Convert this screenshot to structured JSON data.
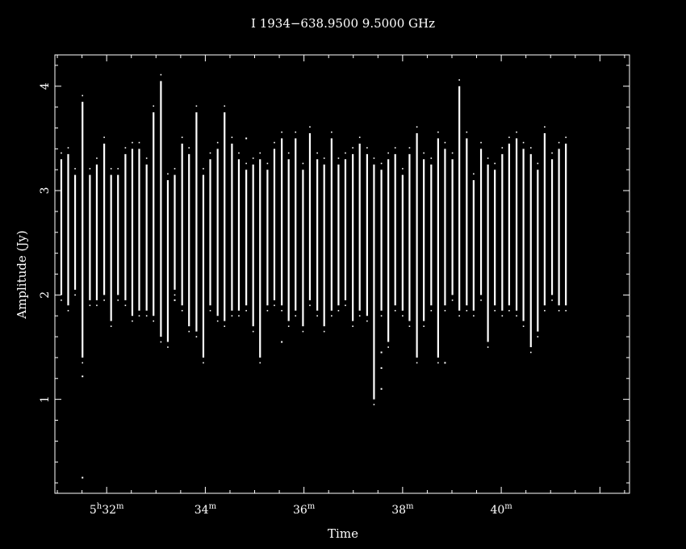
{
  "chart_data": {
    "type": "scatter",
    "title": "I 1934−638.9500  9.5000  GHz",
    "xlabel": "Time",
    "ylabel": "Amplitude (Jy)",
    "xlim_minutes": [
      30.95,
      42.6
    ],
    "ylim": [
      0.1,
      4.3
    ],
    "y_ticks": [
      1,
      2,
      3,
      4
    ],
    "x_ticks": [
      {
        "minutes": 32,
        "major": "5",
        "unit1": "h",
        "minor": "32",
        "unit2": "m"
      },
      {
        "minutes": 34,
        "major": "",
        "unit1": "",
        "minor": "34",
        "unit2": "m"
      },
      {
        "minutes": 36,
        "major": "",
        "unit1": "",
        "minor": "36",
        "unit2": "m"
      },
      {
        "minutes": 38,
        "major": "",
        "unit1": "",
        "minor": "38",
        "unit2": "m"
      },
      {
        "minutes": 40,
        "major": "",
        "unit1": "",
        "minor": "40",
        "unit2": "m"
      }
    ],
    "grid": false,
    "legend": "none",
    "colors": {
      "background": "#000000",
      "foreground": "#ffffff"
    },
    "series": [
      {
        "description_of_values": "vertical amplitude spans per integration (time in minutes past 5h, min and max amplitude in Jy)",
        "time_minutes": [
          31.08,
          31.22,
          31.36,
          31.51,
          31.66,
          31.8,
          31.95,
          32.09,
          32.23,
          32.38,
          32.52,
          32.66,
          32.81,
          32.95,
          33.1,
          33.24,
          33.38,
          33.53,
          33.67,
          33.82,
          33.96,
          34.1,
          34.25,
          34.39,
          34.54,
          34.68,
          34.83,
          34.97,
          35.11,
          35.26,
          35.4,
          35.55,
          35.69,
          35.83,
          35.98,
          36.12,
          36.27,
          36.41,
          36.56,
          36.7,
          36.84,
          36.99,
          37.13,
          37.28,
          37.42,
          37.57,
          37.71,
          37.85,
          38.0,
          38.14,
          38.29,
          38.43,
          38.58,
          38.72,
          38.86,
          39.01,
          39.15,
          39.3,
          39.44,
          39.59,
          39.73,
          39.87,
          40.02,
          40.16,
          40.31,
          40.45,
          40.6,
          40.74,
          40.88,
          41.03,
          41.17,
          41.31
        ],
        "y_min": [
          2.0,
          1.9,
          2.05,
          1.4,
          1.95,
          1.95,
          2.0,
          1.75,
          2.0,
          1.95,
          1.8,
          1.85,
          1.85,
          1.8,
          1.6,
          1.55,
          2.05,
          1.9,
          1.7,
          1.65,
          1.4,
          1.9,
          1.8,
          1.75,
          1.85,
          1.85,
          1.9,
          1.7,
          1.4,
          1.9,
          1.95,
          1.9,
          1.75,
          1.85,
          1.7,
          1.95,
          1.85,
          1.7,
          1.85,
          1.9,
          1.95,
          1.75,
          1.85,
          1.8,
          1.0,
          1.85,
          1.55,
          1.9,
          1.85,
          1.75,
          1.4,
          1.75,
          1.9,
          1.4,
          1.9,
          2.0,
          1.85,
          1.9,
          1.85,
          2.0,
          1.55,
          1.9,
          1.85,
          1.9,
          1.85,
          1.75,
          1.5,
          1.65,
          1.9,
          2.0,
          1.9,
          1.9
        ],
        "y_max": [
          3.3,
          3.35,
          3.15,
          3.85,
          3.15,
          3.25,
          3.45,
          3.15,
          3.15,
          3.35,
          3.4,
          3.4,
          3.25,
          3.75,
          4.05,
          3.1,
          3.15,
          3.45,
          3.35,
          3.75,
          3.15,
          3.3,
          3.4,
          3.75,
          3.45,
          3.3,
          3.2,
          3.25,
          3.3,
          3.2,
          3.4,
          3.5,
          3.3,
          3.5,
          3.2,
          3.55,
          3.3,
          3.25,
          3.5,
          3.25,
          3.3,
          3.35,
          3.45,
          3.35,
          3.25,
          3.2,
          3.3,
          3.35,
          3.15,
          3.35,
          3.55,
          3.3,
          3.25,
          3.5,
          3.4,
          3.3,
          4.0,
          3.5,
          3.1,
          3.4,
          3.25,
          3.2,
          3.35,
          3.45,
          3.5,
          3.4,
          3.35,
          3.2,
          3.55,
          3.3,
          3.4,
          3.45
        ]
      },
      {
        "description_of_values": "isolated outlier points (time in minutes past 5h, amplitude in Jy)",
        "time_minutes": [
          31.51,
          31.51,
          37.57,
          37.57,
          37.57,
          34.83,
          33.38,
          35.55,
          38.86
        ],
        "y": [
          0.25,
          1.22,
          1.45,
          1.3,
          1.1,
          3.5,
          1.95,
          1.55,
          1.35
        ]
      }
    ]
  }
}
